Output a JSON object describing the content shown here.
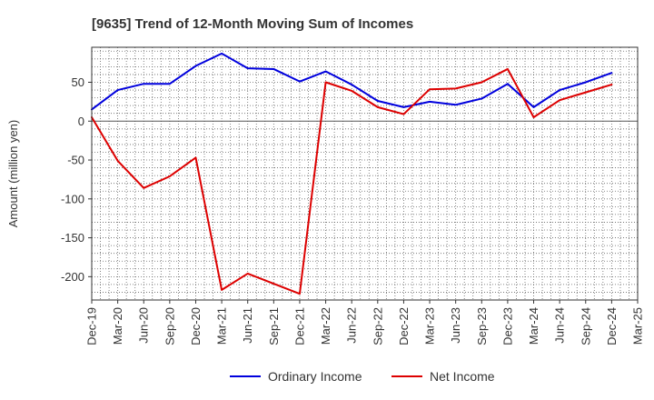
{
  "chart_data": {
    "type": "line",
    "title": "[9635]  Trend of 12-Month Moving Sum of Incomes",
    "xlabel": "",
    "ylabel": "Amount (million yen)",
    "ylim": [
      -230,
      95
    ],
    "yticks": [
      50,
      0,
      -50,
      -100,
      -150,
      -200
    ],
    "categories": [
      "Dec-19",
      "Mar-20",
      "Jun-20",
      "Sep-20",
      "Dec-20",
      "Mar-21",
      "Jun-21",
      "Sep-21",
      "Dec-21",
      "Mar-22",
      "Jun-22",
      "Sep-22",
      "Dec-22",
      "Mar-23",
      "Jun-23",
      "Sep-23",
      "Dec-23",
      "Mar-24",
      "Jun-24",
      "Sep-24",
      "Dec-24",
      "Mar-25"
    ],
    "series": [
      {
        "name": "Ordinary Income",
        "color": "#0000dd",
        "values": [
          15,
          40,
          48,
          48,
          71,
          87,
          68,
          67,
          51,
          64,
          47,
          26,
          18,
          25,
          21,
          29,
          48,
          18,
          40,
          50,
          62,
          null
        ]
      },
      {
        "name": "Net Income",
        "color": "#dd0000",
        "values": [
          5,
          -51,
          -86,
          -71,
          -47,
          -217,
          -196,
          -209,
          -222,
          50,
          39,
          18,
          9,
          41,
          42,
          50,
          67,
          5,
          27,
          37,
          47,
          null
        ]
      }
    ],
    "grid": true,
    "legend": "bottom-center"
  }
}
